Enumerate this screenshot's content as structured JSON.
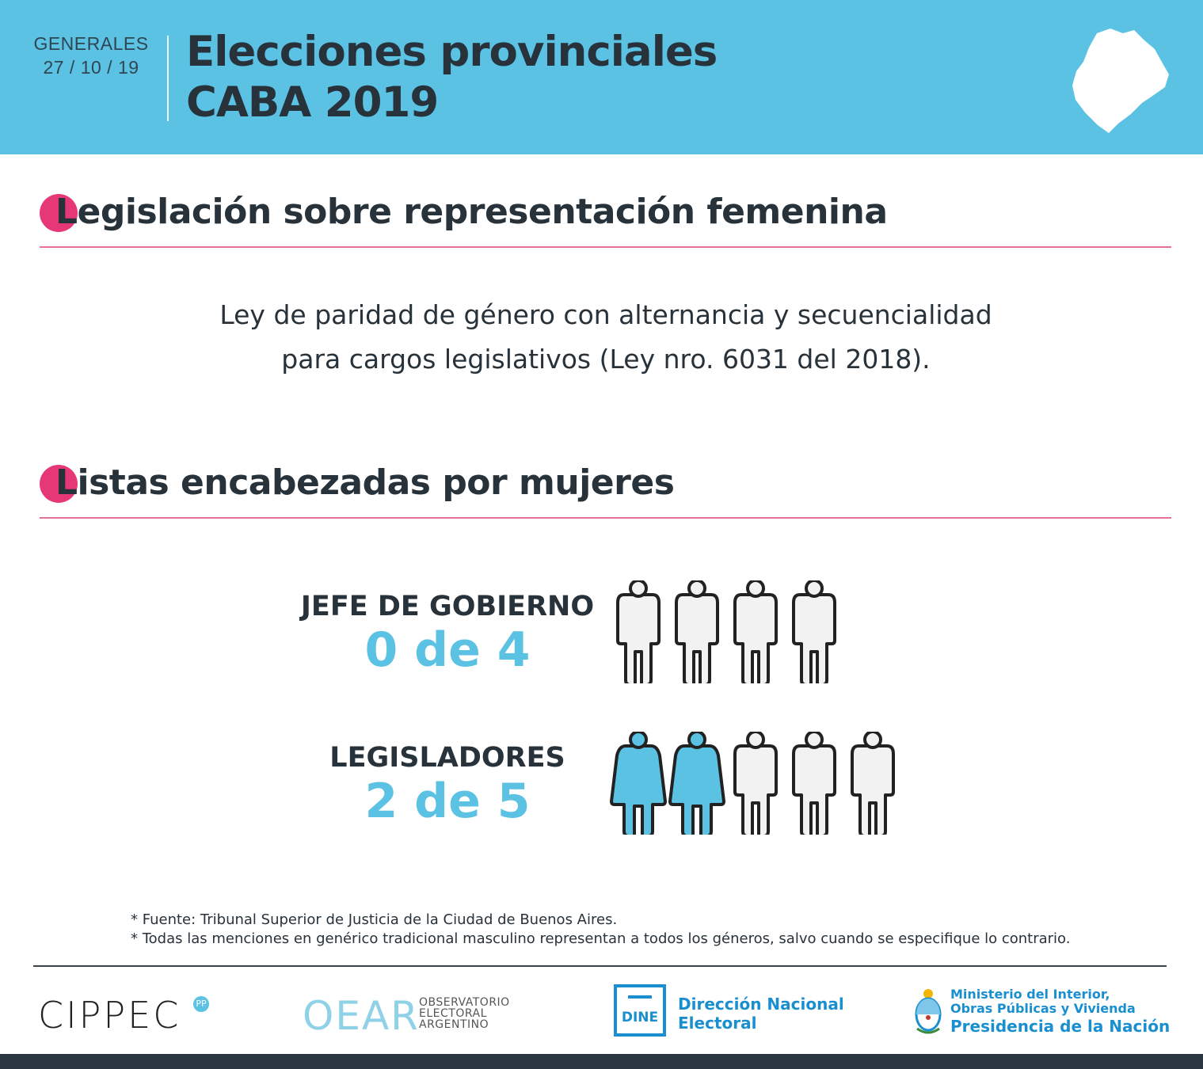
{
  "header": {
    "kicker": "GENERALES",
    "date": "27 / 10 / 19",
    "title_line1": "Elecciones provinciales",
    "title_line2": "CABA 2019",
    "map_icon": "caba-map-icon"
  },
  "section_legislation": {
    "heading": "Legislación sobre representación femenina",
    "text_line1": "Ley de paridad de género con alternancia y secuencialidad",
    "text_line2": "para cargos legislativos (Ley nro. 6031 del 2018)."
  },
  "section_lists": {
    "heading": "Listas encabezadas por mujeres",
    "stats": [
      {
        "label": "JEFE DE GOBIERNO",
        "value_text": "0 de 4",
        "women": 0,
        "total": 4
      },
      {
        "label": "LEGISLADORES",
        "value_text": "2 de 5",
        "women": 2,
        "total": 5
      }
    ]
  },
  "notes": [
    "* Fuente: Tribunal Superior de Justicia de la Ciudad de Buenos Aires.",
    "* Todas las menciones en genérico tradicional masculino representan a todos los géneros, salvo cuando se especifique lo contrario."
  ],
  "footer": {
    "cippec": "CIPPEC",
    "cippec_badge": "PP",
    "oear": "OEAR",
    "oear_sub1": "OBSERVATORIO",
    "oear_sub2": "ELECTORAL",
    "oear_sub3": "ARGENTINO",
    "dine_mark": "DINE",
    "dine_line1": "Dirección Nacional",
    "dine_line2": "Electoral",
    "ministry_line1": "Ministerio del Interior,",
    "ministry_line2": "Obras Públicas y Vivienda",
    "ministry_line3": "Presidencia de la Nación"
  },
  "colors": {
    "header_bg": "#5bc2e4",
    "accent_pink": "#e63777",
    "value_blue": "#5bc2e4",
    "woman_icon": "#5bc2e4",
    "man_icon": "#f2f2f2",
    "institution_blue": "#1a8fd0"
  }
}
